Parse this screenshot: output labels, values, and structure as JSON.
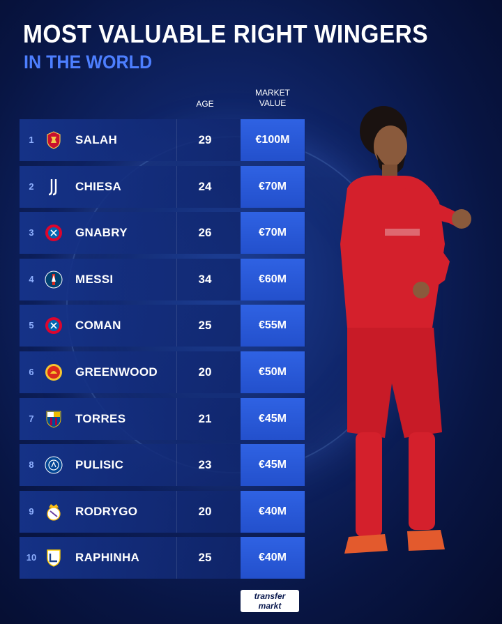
{
  "header": {
    "title": "MOST VALUABLE RIGHT WINGERS",
    "subtitle": "IN THE WORLD"
  },
  "columns": {
    "age": "AGE",
    "market_value_line1": "MARKET",
    "market_value_line2": "VALUE"
  },
  "rows": [
    {
      "rank": "1",
      "name": "SALAH",
      "age": "29",
      "value": "€100M",
      "club_icon": "liverpool-crest-icon"
    },
    {
      "rank": "2",
      "name": "CHIESA",
      "age": "24",
      "value": "€70M",
      "club_icon": "juventus-logo-icon"
    },
    {
      "rank": "3",
      "name": "GNABRY",
      "age": "26",
      "value": "€70M",
      "club_icon": "bayern-crest-icon"
    },
    {
      "rank": "4",
      "name": "MESSI",
      "age": "34",
      "value": "€60M",
      "club_icon": "psg-crest-icon"
    },
    {
      "rank": "5",
      "name": "COMAN",
      "age": "25",
      "value": "€55M",
      "club_icon": "bayern-crest-icon"
    },
    {
      "rank": "6",
      "name": "GREENWOOD",
      "age": "20",
      "value": "€50M",
      "club_icon": "man-united-crest-icon"
    },
    {
      "rank": "7",
      "name": "TORRES",
      "age": "21",
      "value": "€45M",
      "club_icon": "barcelona-crest-icon"
    },
    {
      "rank": "8",
      "name": "PULISIC",
      "age": "23",
      "value": "€45M",
      "club_icon": "chelsea-crest-icon"
    },
    {
      "rank": "9",
      "name": "RODRYGO",
      "age": "20",
      "value": "€40M",
      "club_icon": "real-madrid-crest-icon"
    },
    {
      "rank": "10",
      "name": "RAPHINHA",
      "age": "25",
      "value": "€40M",
      "club_icon": "leeds-crest-icon"
    }
  ],
  "brand": {
    "line1": "transfer",
    "line2": "markt"
  },
  "colors": {
    "background": "#0f2466",
    "accent": "#2f62e3",
    "subtitle": "#4d7fff",
    "row": "#16348c"
  }
}
